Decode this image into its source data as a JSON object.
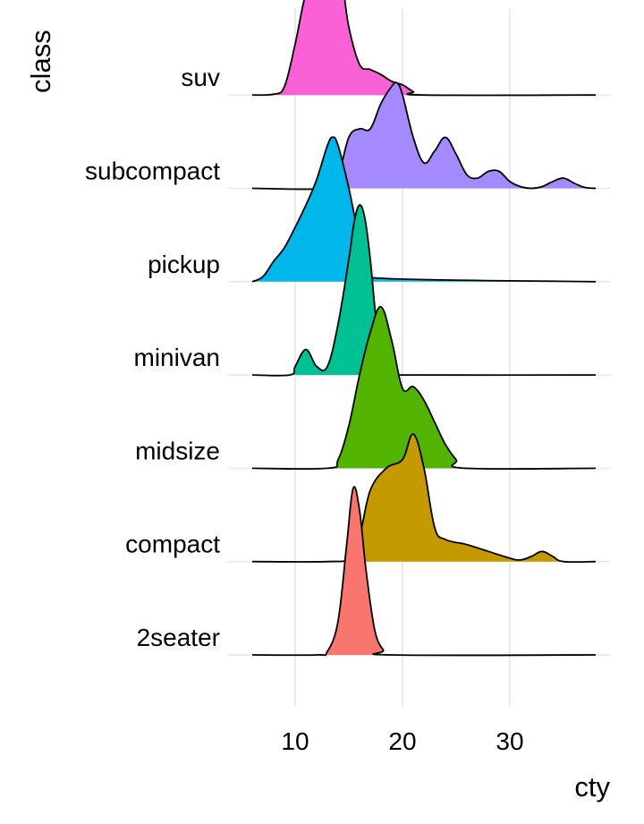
{
  "chart_data": {
    "type": "ridgeline",
    "xlabel": "cty",
    "ylabel": "class",
    "xlim": [
      6,
      38
    ],
    "xticks": [
      "10",
      "20",
      "30"
    ],
    "grid": true,
    "legend": "none",
    "categories": [
      "2seater",
      "compact",
      "midsize",
      "minivan",
      "pickup",
      "subcompact",
      "suv"
    ],
    "series": [
      {
        "category": "2seater",
        "color": "#F8766D",
        "x": [
          6,
          12,
          13,
          14,
          14.8,
          15.4,
          16.0,
          16.6,
          17.4,
          18.2,
          19,
          38
        ],
        "density": [
          0,
          0,
          0.02,
          0.2,
          0.65,
          0.98,
          0.85,
          0.5,
          0.15,
          0.03,
          0,
          0
        ]
      },
      {
        "category": "compact",
        "color": "#C49A00",
        "x": [
          6,
          13,
          15,
          16,
          17,
          18.5,
          20,
          21,
          22,
          23,
          24,
          26,
          28,
          30,
          31,
          32,
          33,
          34,
          35,
          38
        ],
        "density": [
          0,
          0,
          0.02,
          0.15,
          0.42,
          0.55,
          0.6,
          0.75,
          0.55,
          0.2,
          0.13,
          0.1,
          0.06,
          0.02,
          0.01,
          0.03,
          0.06,
          0.03,
          0,
          0
        ]
      },
      {
        "category": "midsize",
        "color": "#53B400",
        "x": [
          6,
          13,
          14,
          15,
          16,
          17,
          18,
          19,
          20,
          21,
          22,
          23,
          24,
          25,
          25.8,
          38
        ],
        "density": [
          0,
          0,
          0.05,
          0.25,
          0.55,
          0.8,
          0.95,
          0.75,
          0.47,
          0.48,
          0.4,
          0.27,
          0.14,
          0.05,
          0,
          0
        ]
      },
      {
        "category": "minivan",
        "color": "#00C094",
        "x": [
          6,
          9.5,
          10,
          11,
          12,
          13,
          14,
          15,
          15.5,
          16,
          16.5,
          17,
          17.5,
          18,
          18.5,
          19,
          20,
          38
        ],
        "density": [
          0,
          0,
          0.05,
          0.15,
          0.05,
          0.05,
          0.3,
          0.68,
          0.9,
          1.0,
          0.92,
          0.68,
          0.35,
          0.15,
          0.05,
          0.01,
          0,
          0
        ]
      },
      {
        "category": "pickup",
        "color": "#00B6EB",
        "x": [
          6,
          7,
          8,
          9,
          10,
          11,
          12,
          13,
          13.5,
          14,
          15,
          16,
          17,
          18,
          38
        ],
        "density": [
          0,
          0.03,
          0.12,
          0.2,
          0.32,
          0.45,
          0.6,
          0.8,
          0.85,
          0.8,
          0.55,
          0.25,
          0.08,
          0.02,
          0
        ]
      },
      {
        "category": "subcompact",
        "color": "#A58AFF",
        "x": [
          6,
          13,
          14,
          15,
          16,
          17,
          18,
          19,
          19.5,
          20,
          21,
          22,
          23,
          24,
          25,
          26,
          27,
          28,
          29,
          30,
          31,
          32,
          33,
          34,
          35,
          36,
          37,
          38
        ],
        "density": [
          0,
          0,
          0.07,
          0.3,
          0.35,
          0.35,
          0.5,
          0.6,
          0.62,
          0.55,
          0.3,
          0.15,
          0.22,
          0.3,
          0.2,
          0.08,
          0.06,
          0.1,
          0.1,
          0.04,
          0.01,
          0,
          0.01,
          0.04,
          0.06,
          0.03,
          0.005,
          0
        ]
      },
      {
        "category": "suv",
        "color": "#FB61D7",
        "x": [
          6,
          8,
          9,
          10,
          11,
          12,
          13,
          13.5,
          14,
          14.5,
          15,
          16,
          17,
          18,
          19,
          20,
          21,
          22,
          38
        ],
        "density": [
          0,
          0.005,
          0.05,
          0.3,
          0.6,
          0.72,
          0.82,
          0.85,
          0.8,
          0.62,
          0.4,
          0.18,
          0.15,
          0.12,
          0.08,
          0.06,
          0.02,
          0,
          0
        ]
      }
    ]
  }
}
